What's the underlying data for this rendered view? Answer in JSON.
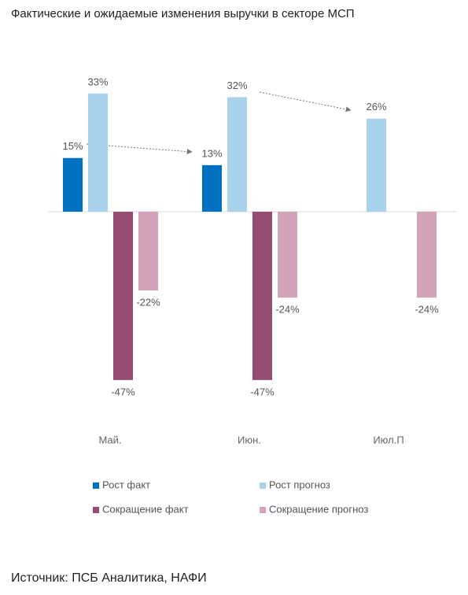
{
  "chart_data": {
    "type": "bar",
    "title": "Фактические и ожидаемые изменения выручки в секторе МСП",
    "categories": [
      "Май.",
      "Июн.",
      "Июл.П"
    ],
    "series": [
      {
        "name": "Рост факт",
        "color": "#0070c0",
        "values": [
          15,
          13,
          null
        ],
        "value_labels": [
          "15%",
          "13%",
          null
        ]
      },
      {
        "name": "Рост прогноз",
        "color": "#a9d3ec",
        "values": [
          33,
          32,
          26
        ],
        "value_labels": [
          "33%",
          "32%",
          "26%"
        ]
      },
      {
        "name": "Сокращение факт",
        "color": "#974d72",
        "values": [
          -47,
          -47,
          null
        ],
        "value_labels": [
          "-47%",
          "-47%",
          null
        ]
      },
      {
        "name": "Сокращение прогноз",
        "color": "#d3a3ba",
        "values": [
          -22,
          -24,
          -24
        ],
        "value_labels": [
          "-22%",
          "-24%",
          "-24%"
        ]
      }
    ],
    "ylim": [
      -50,
      40
    ],
    "source": "Источник: ПСБ Аналитика, НАФИ"
  }
}
